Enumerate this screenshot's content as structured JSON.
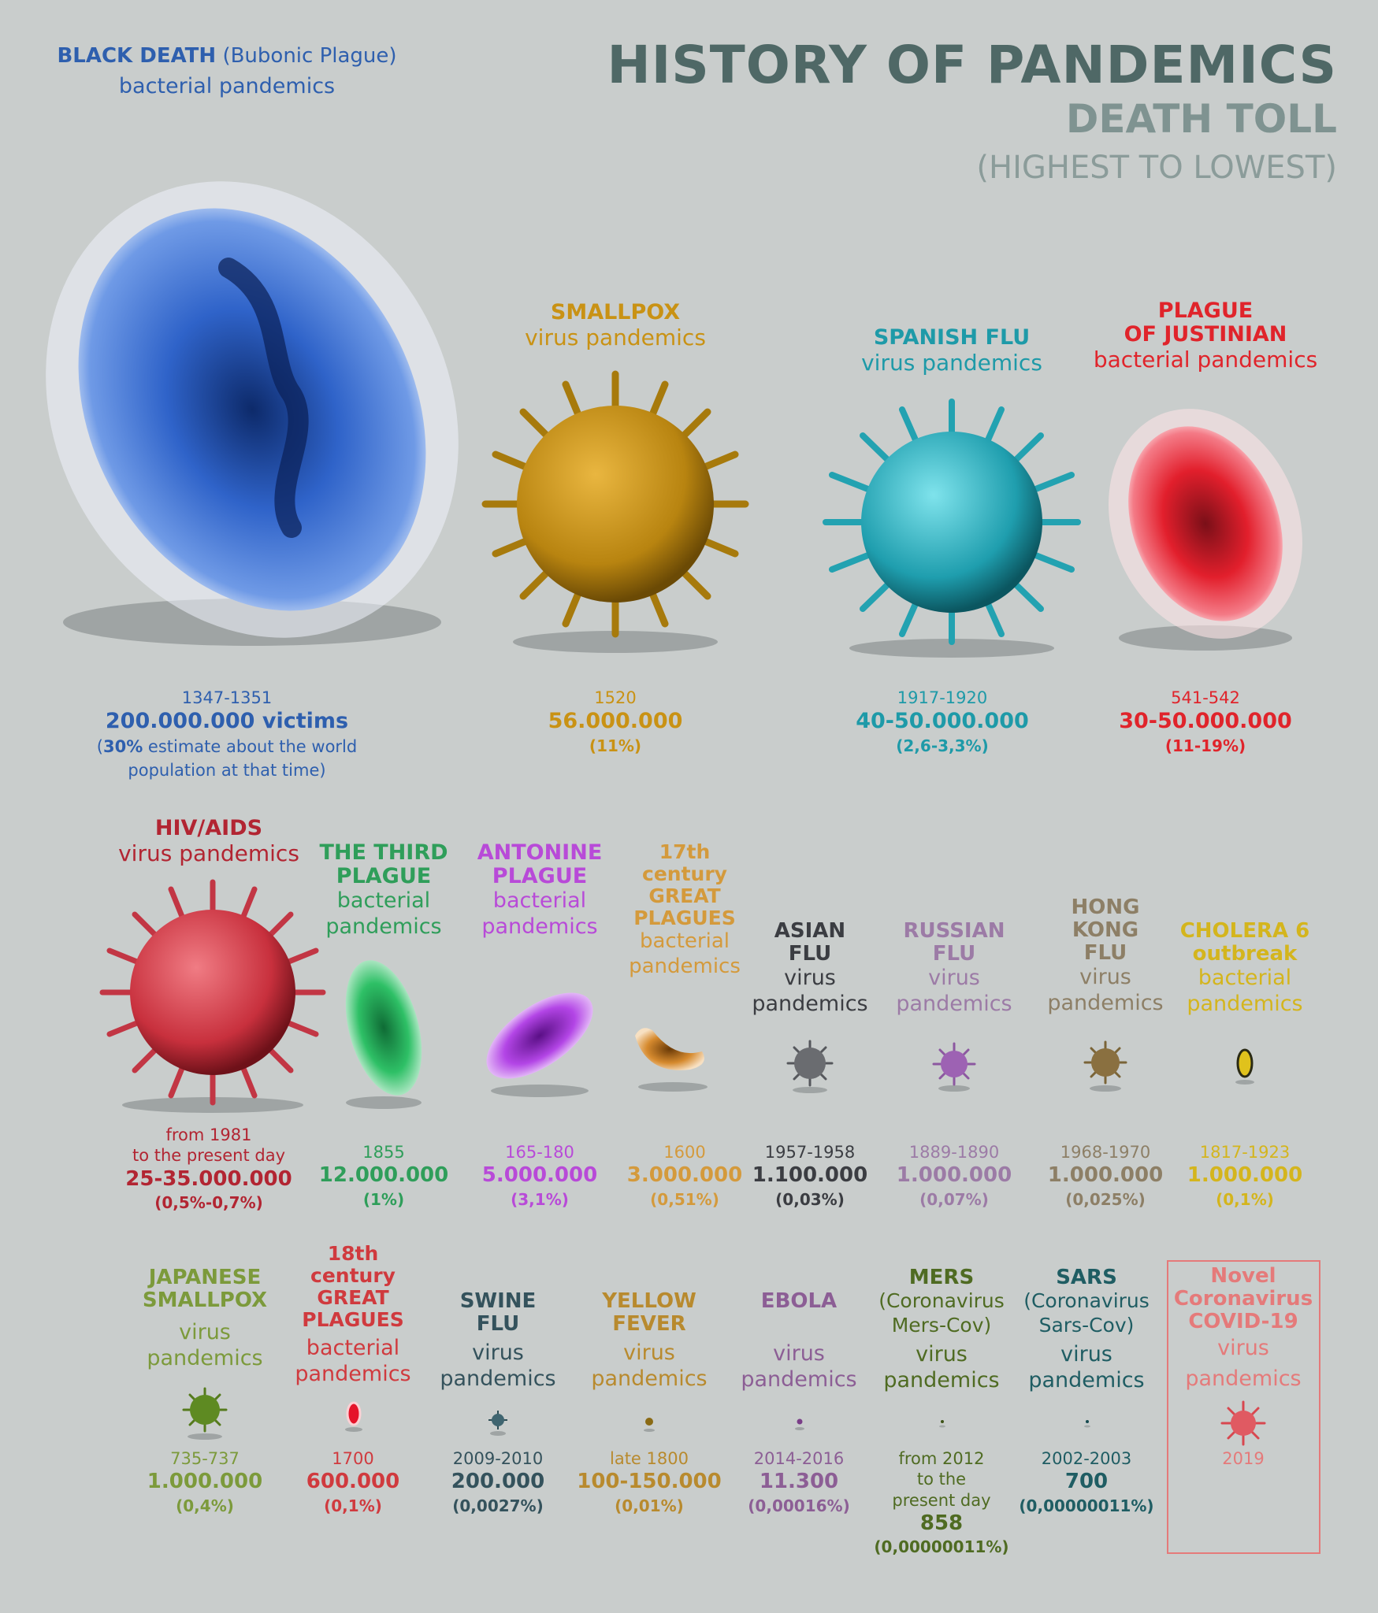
{
  "header": {
    "title": "HISTORY OF PANDEMICS",
    "subtitle": "DEATH TOLL",
    "order_note": "(HIGHEST TO LOWEST)"
  },
  "pandemics": {
    "black_death": {
      "name": "BLACK DEATH",
      "name_extra": "(Bubonic Plague)",
      "type": "bacterial pandemics",
      "years": "1347-1351",
      "toll": "200.000.000 victims",
      "pct_bold": "30%",
      "note_rest1": " estimate about the world",
      "note_line2": "population at that time",
      "color": "#2e5fae"
    },
    "smallpox": {
      "name": "SMALLPOX",
      "type": "virus pandemics",
      "years": "1520",
      "toll": "56.000.000",
      "pct": "(11%)",
      "color": "#c99214"
    },
    "spanish_flu": {
      "name": "SPANISH FLU",
      "type": "virus pandemics",
      "years": "1917-1920",
      "toll": "40-50.000.000",
      "pct": "(2,6-3,3%)",
      "color": "#1e9aa8"
    },
    "justinian": {
      "name": "PLAGUE\nOF JUSTINIAN",
      "type": "bacterial pandemics",
      "years": "541-542",
      "toll": "30-50.000.000",
      "pct": "(11-19%)",
      "color": "#e0242b"
    },
    "hiv": {
      "name": "HIV/AIDS",
      "type": "virus pandemics",
      "years": "from 1981\nto the present day",
      "toll": "25-35.000.000",
      "pct": "(0,5%-0,7%)",
      "color": "#b22532"
    },
    "third_plague": {
      "name": "THE THIRD\nPLAGUE",
      "type": "bacterial\npandemics",
      "years": "1855",
      "toll": "12.000.000",
      "pct": "(1%)",
      "color": "#2f9e5a"
    },
    "antonine": {
      "name": "ANTONINE\nPLAGUE",
      "type": "bacterial\npandemics",
      "years": "165-180",
      "toll": "5.000.000",
      "pct": "(3,1%)",
      "color": "#b84ad8"
    },
    "great_plagues_17": {
      "name": "17th\ncentury\nGREAT\nPLAGUES",
      "type": "bacterial\npandemics",
      "years": "1600",
      "toll": "3.000.000",
      "pct": "(0,51%)",
      "color": "#d49a3c"
    },
    "asian_flu": {
      "name": "ASIAN\nFLU",
      "type": "virus\npandemics",
      "years": "1957-1958",
      "toll": "1.100.000",
      "pct": "(0,03%)",
      "color": "#3b3d42"
    },
    "russian_flu": {
      "name": "RUSSIAN\nFLU",
      "type": "virus\npandemics",
      "years": "1889-1890",
      "toll": "1.000.000",
      "pct": "(0,07%)",
      "color": "#9c7ba6"
    },
    "hong_kong_flu": {
      "name": "HONG\nKONG\nFLU",
      "type": "virus\npandemics",
      "years": "1968-1970",
      "toll": "1.000.000",
      "pct": "(0,025%)",
      "color": "#8d7f66"
    },
    "cholera6": {
      "name": "CHOLERA 6\noutbreak",
      "type": "bacterial\npandemics",
      "years": "1817-1923",
      "toll": "1.000.000",
      "pct": "(0,1%)",
      "color": "#d4b51d"
    },
    "japanese_smallpox": {
      "name": "JAPANESE\nSMALLPOX",
      "type": "virus\npandemics",
      "years": "735-737",
      "toll": "1.000.000",
      "pct": "(0,4%)",
      "color": "#7c9a3b"
    },
    "great_plagues_18": {
      "name": "18th\ncentury\nGREAT\nPLAGUES",
      "type": "bacterial\npandemics",
      "years": "1700",
      "toll": "600.000",
      "pct": "(0,1%)",
      "color": "#d03a3e"
    },
    "swine_flu": {
      "name": "SWINE\nFLU",
      "type": "virus\npandemics",
      "years": "2009-2010",
      "toll": "200.000",
      "pct": "(0,0027%)",
      "color": "#34525c"
    },
    "yellow_fever": {
      "name": "YELLOW\nFEVER",
      "type": "virus\npandemics",
      "years": "late 1800",
      "toll": "100-150.000",
      "pct": "(0,01%)",
      "color": "#b88a2e"
    },
    "ebola": {
      "name": "EBOLA",
      "type": "virus\npandemics",
      "years": "2014-2016",
      "toll": "11.300",
      "pct": "(0,00016%)",
      "color": "#8c5e95"
    },
    "mers": {
      "name": "MERS",
      "name_extra": "(Coronavirus\nMers-Cov)",
      "type": "virus\npandemics",
      "years": "from 2012\nto the\npresent day",
      "toll": "858",
      "pct": "(0,00000011%)",
      "color": "#4f6b22"
    },
    "sars": {
      "name": "SARS",
      "name_extra": "(Coronavirus\nSars-Cov)",
      "type": "virus\npandemics",
      "years": "2002-2003",
      "toll": "700",
      "pct": "(0,00000011%)",
      "color": "#1f5d63"
    },
    "covid": {
      "name": "Novel\nCoronavirus\nCOVID-19",
      "type": "virus\npandemics",
      "years": "2019",
      "color": "#e57a7a"
    }
  }
}
